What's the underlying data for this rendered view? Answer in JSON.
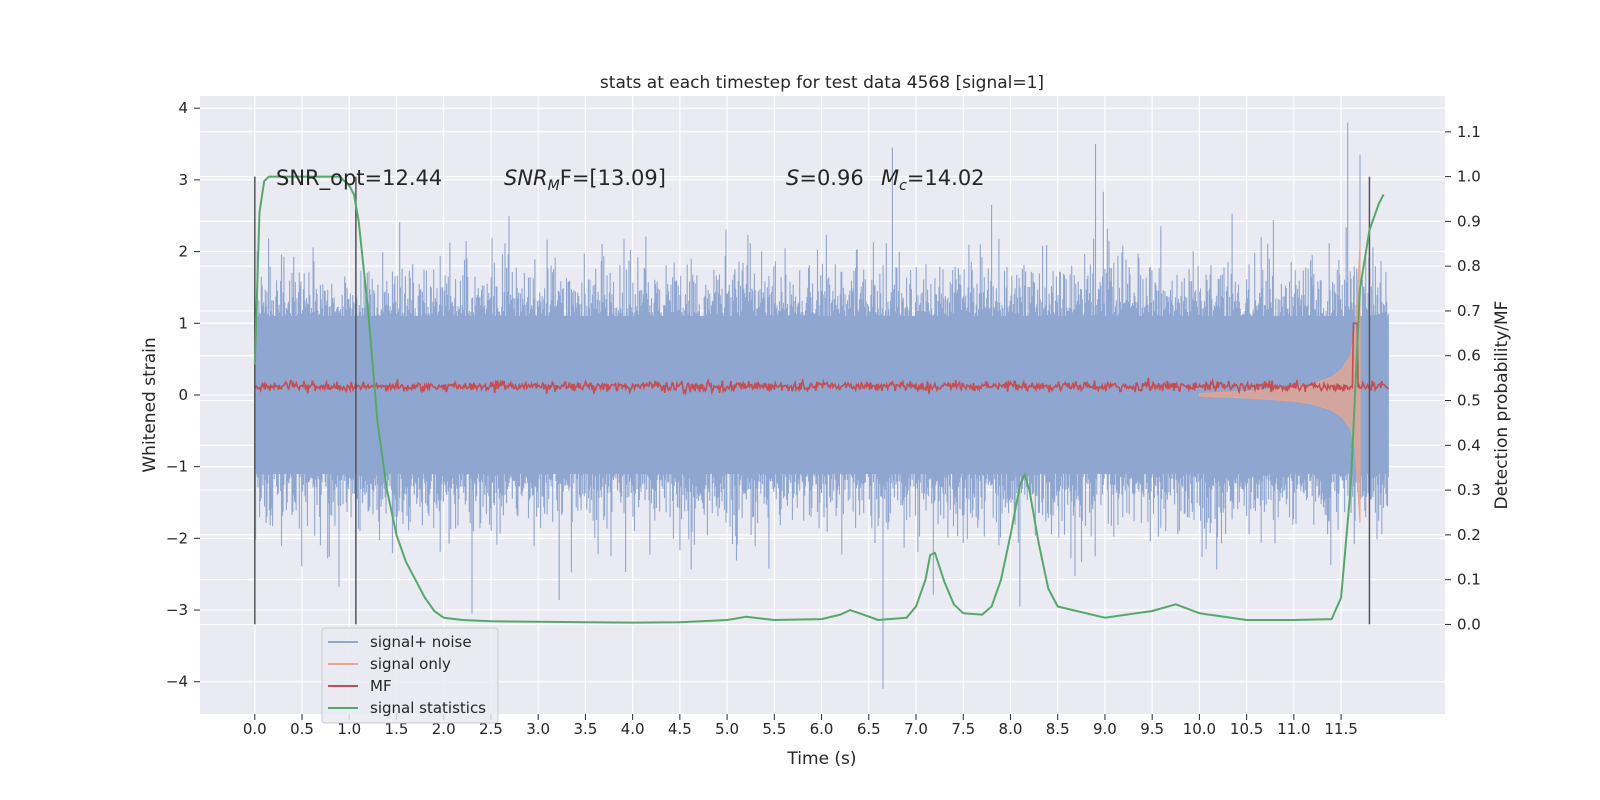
{
  "chart_data": {
    "type": "line",
    "title": "stats at each timestep for test data 4568 [signal=1]",
    "xlabel": "Time (s)",
    "ylabel_left": "Whitened strain",
    "ylabel_right": "Detection probability/MF",
    "xlim": [
      -0.58,
      12.6
    ],
    "ylim_left": [
      -4.45,
      4.17
    ],
    "ylim_right": [
      -0.2,
      1.18
    ],
    "x_ticks": [
      "0.0",
      "0.5",
      "1.0",
      "1.5",
      "2.0",
      "2.5",
      "3.0",
      "3.5",
      "4.0",
      "4.5",
      "5.0",
      "5.5",
      "6.0",
      "6.5",
      "7.0",
      "7.5",
      "8.0",
      "8.5",
      "9.0",
      "9.5",
      "10.0",
      "10.5",
      "11.0",
      "11.5"
    ],
    "y_ticks_left": [
      4,
      3,
      2,
      1,
      0,
      -1,
      -2,
      -3,
      -4
    ],
    "y_tick_labels_left": [
      "4",
      "3",
      "2",
      "1",
      "0",
      "−1",
      "−2",
      "−3",
      "−4"
    ],
    "y_ticks_right": [
      1.1,
      1.0,
      0.9,
      0.8,
      0.7,
      0.6,
      0.5,
      0.4,
      0.3,
      0.2,
      0.1,
      0.0
    ],
    "y_tick_labels_right": [
      "1.1",
      "1.0",
      "0.9",
      "0.8",
      "0.7",
      "0.6",
      "0.5",
      "0.4",
      "0.3",
      "0.2",
      "0.1",
      "0.0"
    ],
    "grid": true,
    "legend_position": "lower-left",
    "annotations": {
      "snr_opt": "SNR_opt=12.44",
      "snr_mf_label": "SNR",
      "snr_mf_sub": "M",
      "snr_mf_rest": "F=[13.09]",
      "s_label": "S",
      "s_rest": "=0.96",
      "mc_label": "M",
      "mc_sub": "c",
      "mc_rest": "=14.02"
    },
    "vertical_lines_x": [
      0.0,
      1.07,
      11.8
    ],
    "series": [
      {
        "name": "signal+ noise",
        "color": "#8fa6d1",
        "axis": "left",
        "x_start": 0.0,
        "x_end": 12.0,
        "envelope_upper": 1.9,
        "envelope_lower": -1.9,
        "peak_max": 3.8,
        "peak_min": -4.1
      },
      {
        "name": "signal only",
        "color": "#e8a58c",
        "axis": "left",
        "x": [
          10.0,
          10.5,
          11.0,
          11.2,
          11.4,
          11.5,
          11.6,
          11.65,
          11.7
        ],
        "amplitude": [
          0.02,
          0.05,
          0.1,
          0.15,
          0.25,
          0.35,
          0.55,
          0.9,
          2.1
        ]
      },
      {
        "name": "MF",
        "color": "#c44e52",
        "axis": "left",
        "baseline": 0.12,
        "noise_amplitude": 0.07,
        "spike_x": 11.65,
        "spike_y": 1.0
      },
      {
        "name": "signal statistics",
        "color": "#55a868",
        "axis": "right",
        "x": [
          0.0,
          0.05,
          0.1,
          0.15,
          0.3,
          0.5,
          0.7,
          0.9,
          0.95,
          1.0,
          1.05,
          1.1,
          1.2,
          1.3,
          1.4,
          1.5,
          1.6,
          1.7,
          1.8,
          1.9,
          2.0,
          2.2,
          2.5,
          3.0,
          3.5,
          4.0,
          4.5,
          5.0,
          5.2,
          5.5,
          6.0,
          6.2,
          6.3,
          6.4,
          6.6,
          6.9,
          7.0,
          7.1,
          7.15,
          7.2,
          7.3,
          7.4,
          7.5,
          7.7,
          7.8,
          7.9,
          8.0,
          8.1,
          8.15,
          8.2,
          8.3,
          8.4,
          8.5,
          8.7,
          9.0,
          9.5,
          9.75,
          10.0,
          10.5,
          11.0,
          11.4,
          11.5,
          11.6,
          11.7,
          11.8,
          11.9,
          11.95
        ],
        "y": [
          0.58,
          0.92,
          0.99,
          1.0,
          1.0,
          1.0,
          1.0,
          1.0,
          0.99,
          0.98,
          0.96,
          0.9,
          0.7,
          0.45,
          0.3,
          0.2,
          0.14,
          0.1,
          0.06,
          0.03,
          0.015,
          0.01,
          0.007,
          0.006,
          0.005,
          0.004,
          0.005,
          0.01,
          0.017,
          0.01,
          0.012,
          0.022,
          0.032,
          0.025,
          0.01,
          0.015,
          0.04,
          0.1,
          0.155,
          0.16,
          0.095,
          0.045,
          0.025,
          0.022,
          0.04,
          0.1,
          0.2,
          0.31,
          0.335,
          0.3,
          0.18,
          0.08,
          0.04,
          0.03,
          0.015,
          0.03,
          0.045,
          0.025,
          0.01,
          0.01,
          0.012,
          0.06,
          0.3,
          0.75,
          0.88,
          0.94,
          0.96
        ]
      }
    ]
  }
}
